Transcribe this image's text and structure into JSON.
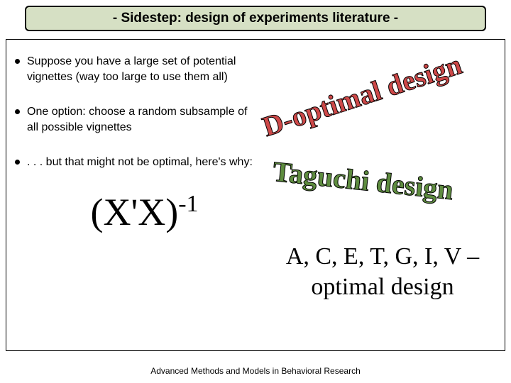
{
  "title_bar": {
    "text": "- Sidestep: design of experiments literature -",
    "background_color": "#d6e0c4",
    "border_color": "#000000",
    "font_size": 19,
    "font_weight": "bold"
  },
  "slide_background": "#ffffff",
  "content_border_color": "#000000",
  "bullets": [
    {
      "text": "Suppose you have a large set of potential vignettes (way too large to use them all)"
    },
    {
      "text": "One option: choose a random subsample of all possible vignettes"
    },
    {
      "text": ". . . but that might not be optimal, here's why:"
    }
  ],
  "formula": {
    "base": "(X'X)",
    "exponent": "-1",
    "font_size": 54,
    "font_family": "Times New Roman"
  },
  "decorative_text": {
    "d_optimal": {
      "text": "D-optimal design",
      "rotation_deg": -18,
      "color": "#cd4848",
      "stroke_color": "#000000",
      "font_size": 40,
      "font_family": "Times New Roman",
      "font_weight": "bold"
    },
    "taguchi": {
      "text": "Taguchi design",
      "rotation_deg": 6,
      "color": "#5e8c3f",
      "stroke_color": "#000000",
      "font_size": 40,
      "font_family": "Times New Roman",
      "font_weight": "bold"
    },
    "optimal_list": {
      "text": "A, C, E, T, G, I, V – optimal design",
      "color": "#000000",
      "font_size": 34,
      "font_family": "Times New Roman"
    }
  },
  "footer": {
    "text": "Advanced Methods and Models in Behavioral Research",
    "font_size": 12
  }
}
